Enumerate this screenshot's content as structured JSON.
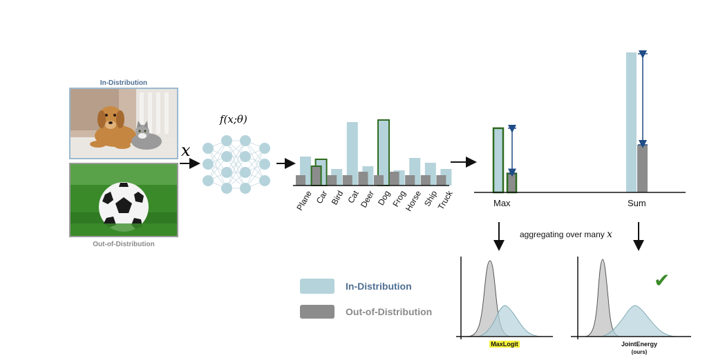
{
  "images": {
    "in_distribution_label": "In-Distribution",
    "out_of_distribution_label": "Out-of-Distribution",
    "input_symbol": "x"
  },
  "network": {
    "function_label": "f(x;θ)"
  },
  "logit_chart": {
    "categories": [
      "Plane",
      "Car",
      "Bird",
      "Cat",
      "Deer",
      "Dog",
      "Frog",
      "Horse",
      "Ship",
      "Truck"
    ],
    "in_distribution_values": [
      0.42,
      0.38,
      0.24,
      0.92,
      0.28,
      0.95,
      0.22,
      0.4,
      0.33,
      0.24
    ],
    "out_of_distribution_values": [
      0.15,
      0.28,
      0.15,
      0.15,
      0.2,
      0.15,
      0.2,
      0.15,
      0.15,
      0.15
    ],
    "highlighted": [
      "Car",
      "Dog"
    ]
  },
  "aggregates": {
    "max_label": "Max",
    "sum_label": "Sum",
    "max_in_distribution": 0.95,
    "max_out_of_distribution": 0.28,
    "sum_in_distribution": 1.0,
    "sum_out_of_distribution": 0.34
  },
  "aggregation_note": {
    "text": "aggregating over many",
    "symbol": "x"
  },
  "legend": {
    "in_distribution": "In-Distribution",
    "out_of_distribution": "Out-of-Distribution"
  },
  "distribution_plots": {
    "left_label": "MaxLogit",
    "right_label": "JointEnergy",
    "right_sublabel": "(ours)",
    "checkmark": "✔"
  },
  "colors": {
    "in_distribution": "#b5d3db",
    "out_of_distribution": "#8c8c8c",
    "highlight_border": "#2e6b1f",
    "arrow_blue": "#1f4c86",
    "label_blue": "#4f6f92",
    "check_green": "#3a8a2a",
    "highlight_yellow": "#f6f33b"
  }
}
